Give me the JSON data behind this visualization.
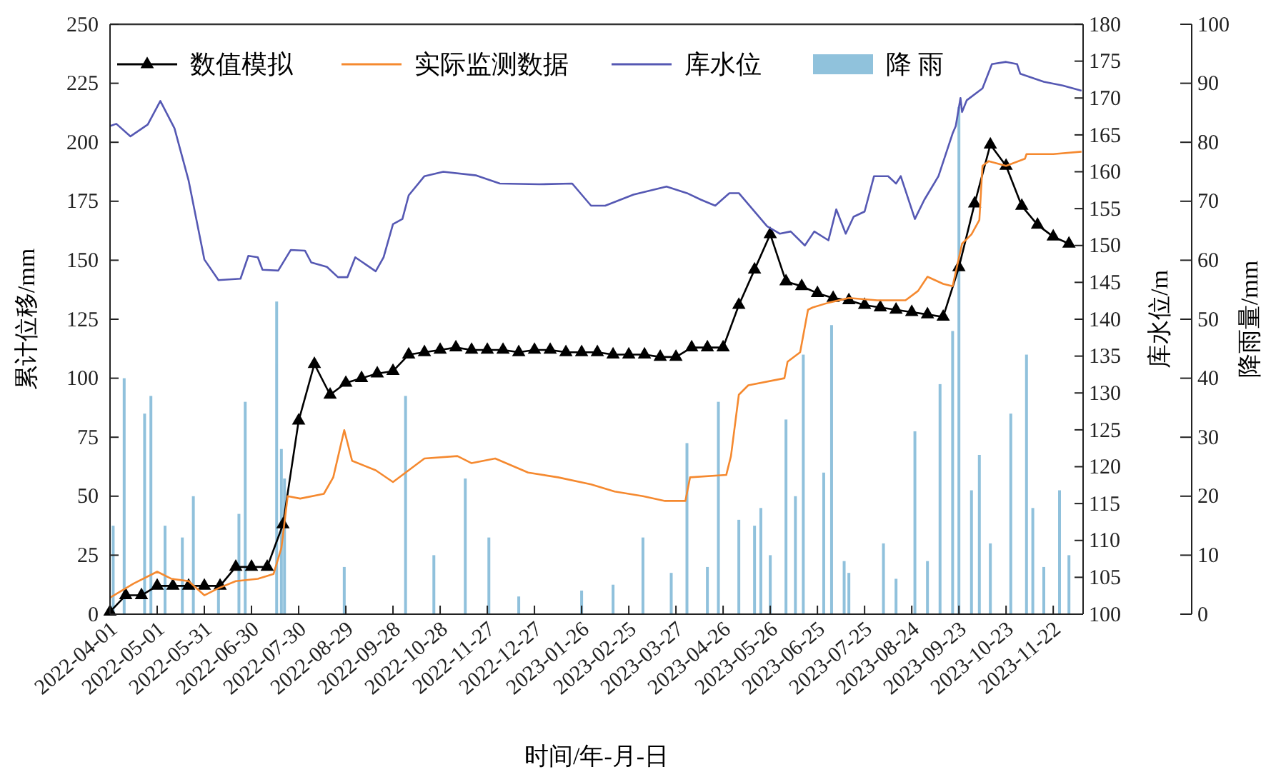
{
  "chart_data": {
    "type": "line",
    "xlabel": "时间/年-月-日",
    "ylabel": "累计位移/mm",
    "y2label": "库水位/m",
    "y3label": "降雨量/mm",
    "legend": "top left",
    "xlim": [
      "2022-04-01",
      "2023-12-11"
    ],
    "xticks": [
      "2022-04-01",
      "2022-05-01",
      "2022-05-31",
      "2022-06-30",
      "2022-07-30",
      "2022-08-29",
      "2022-09-28",
      "2022-10-28",
      "2022-11-27",
      "2022-12-27",
      "2023-01-26",
      "2023-02-25",
      "2023-03-27",
      "2023-04-26",
      "2023-05-26",
      "2023-06-25",
      "2023-07-25",
      "2023-08-24",
      "2023-09-23",
      "2023-10-23",
      "2023-11-22"
    ],
    "ylim": [
      0,
      250
    ],
    "yticks": [
      0,
      25,
      50,
      75,
      100,
      125,
      150,
      175,
      200,
      225,
      250
    ],
    "y2lim": [
      100,
      180
    ],
    "y2ticks": [
      100,
      105,
      110,
      115,
      120,
      125,
      130,
      135,
      140,
      145,
      150,
      155,
      160,
      165,
      170,
      175,
      180
    ],
    "y3lim": [
      0,
      100
    ],
    "y3ticks": [
      0,
      10,
      20,
      30,
      40,
      50,
      60,
      70,
      80,
      90,
      100
    ],
    "series": [
      {
        "name": "数值模拟",
        "color": "#000000",
        "marker": "triangle",
        "x": [
          "2022-04-01",
          "2022-04-11",
          "2022-04-21",
          "2022-05-01",
          "2022-05-11",
          "2022-05-21",
          "2022-05-31",
          "2022-06-10",
          "2022-06-20",
          "2022-06-30",
          "2022-07-10",
          "2022-07-20",
          "2022-07-30",
          "2022-08-09",
          "2022-08-19",
          "2022-08-29",
          "2022-09-08",
          "2022-09-18",
          "2022-09-28",
          "2022-10-08",
          "2022-10-18",
          "2022-10-28",
          "2022-11-07",
          "2022-11-17",
          "2022-11-27",
          "2022-12-07",
          "2022-12-17",
          "2022-12-27",
          "2023-01-06",
          "2023-01-16",
          "2023-01-26",
          "2023-02-05",
          "2023-02-15",
          "2023-02-25",
          "2023-03-07",
          "2023-03-17",
          "2023-03-27",
          "2023-04-06",
          "2023-04-16",
          "2023-04-26",
          "2023-05-06",
          "2023-05-16",
          "2023-05-26",
          "2023-06-05",
          "2023-06-15",
          "2023-06-25",
          "2023-07-05",
          "2023-07-15",
          "2023-07-25",
          "2023-08-04",
          "2023-08-14",
          "2023-08-24",
          "2023-09-03",
          "2023-09-13",
          "2023-09-23",
          "2023-10-03",
          "2023-10-13",
          "2023-10-23",
          "2023-11-02",
          "2023-11-12",
          "2023-11-22",
          "2023-12-02"
        ],
        "values": [
          1,
          8,
          8,
          12,
          12,
          12,
          12,
          12,
          20,
          20,
          20,
          38,
          82,
          106,
          93,
          98,
          100,
          102,
          103,
          110,
          111,
          112,
          113,
          112,
          112,
          112,
          111,
          112,
          112,
          111,
          111,
          111,
          110,
          110,
          110,
          109,
          109,
          113,
          113,
          113,
          131,
          146,
          161,
          141,
          139,
          136,
          134,
          133,
          131,
          130,
          129,
          128,
          127,
          126,
          147,
          174,
          199,
          190,
          173,
          165,
          160,
          157
        ]
      },
      {
        "name": "实际监测数据",
        "color": "#f5892f",
        "x": [
          "2022-04-01",
          "2022-04-16",
          "2022-05-01",
          "2022-05-10",
          "2022-05-21",
          "2022-05-31",
          "2022-06-09",
          "2022-06-20",
          "2022-07-04",
          "2022-07-14",
          "2022-07-19",
          "2022-07-23",
          "2022-07-31",
          "2022-08-15",
          "2022-08-21",
          "2022-08-28",
          "2022-09-02",
          "2022-09-17",
          "2022-09-28",
          "2022-10-06",
          "2022-10-18",
          "2022-11-08",
          "2022-11-17",
          "2022-12-02",
          "2022-12-23",
          "2023-01-11",
          "2023-02-01",
          "2023-02-16",
          "2023-03-06",
          "2023-03-20",
          "2023-04-02",
          "2023-04-05",
          "2023-04-28",
          "2023-05-01",
          "2023-05-06",
          "2023-05-12",
          "2023-06-04",
          "2023-06-06",
          "2023-06-14",
          "2023-06-19",
          "2023-06-22",
          "2023-07-02",
          "2023-07-15",
          "2023-08-02",
          "2023-08-20",
          "2023-08-28",
          "2023-09-03",
          "2023-09-13",
          "2023-09-19",
          "2023-09-25",
          "2023-10-01",
          "2023-10-06",
          "2023-10-08",
          "2023-10-12",
          "2023-10-23",
          "2023-11-04",
          "2023-11-05",
          "2023-11-22",
          "2023-12-10"
        ],
        "values": [
          7,
          13,
          18,
          15,
          14,
          8,
          11,
          14,
          15,
          17,
          28,
          50,
          49,
          51,
          58,
          78,
          65,
          61,
          56,
          60,
          66,
          67,
          64,
          66,
          60,
          58,
          55,
          52,
          50,
          48,
          48,
          58,
          59,
          67,
          93,
          97,
          100,
          107,
          111,
          129,
          130,
          132,
          134,
          133,
          133,
          137,
          143,
          140,
          139,
          157,
          161,
          167,
          190,
          192,
          190,
          193,
          195,
          195,
          196
        ]
      },
      {
        "name": "库水位",
        "axis": "y2",
        "color": "#5558b3",
        "x": [
          "2022-04-01",
          "2022-04-05",
          "2022-04-14",
          "2022-04-25",
          "2022-05-03",
          "2022-05-12",
          "2022-05-21",
          "2022-05-31",
          "2022-06-09",
          "2022-06-23",
          "2022-06-28",
          "2022-07-04",
          "2022-07-07",
          "2022-07-17",
          "2022-07-25",
          "2022-08-03",
          "2022-08-07",
          "2022-08-17",
          "2022-08-24",
          "2022-08-30",
          "2022-09-04",
          "2022-09-17",
          "2022-09-22",
          "2022-09-28",
          "2022-10-04",
          "2022-10-08",
          "2022-10-18",
          "2022-10-30",
          "2022-11-20",
          "2022-12-05",
          "2022-12-30",
          "2023-01-20",
          "2023-02-01",
          "2023-02-10",
          "2023-02-28",
          "2023-03-21",
          "2023-04-03",
          "2023-04-12",
          "2023-04-21",
          "2023-04-30",
          "2023-05-06",
          "2023-05-24",
          "2023-06-01",
          "2023-06-08",
          "2023-06-17",
          "2023-06-23",
          "2023-07-02",
          "2023-07-07",
          "2023-07-13",
          "2023-07-18",
          "2023-07-25",
          "2023-07-31",
          "2023-08-09",
          "2023-08-14",
          "2023-08-17",
          "2023-08-26",
          "2023-09-01",
          "2023-09-10",
          "2023-09-19",
          "2023-09-21",
          "2023-09-24",
          "2023-09-25",
          "2023-09-28",
          "2023-10-08",
          "2023-10-14",
          "2023-10-23",
          "2023-10-30",
          "2023-11-01",
          "2023-11-16",
          "2023-11-28",
          "2023-12-10"
        ],
        "values": [
          166.2,
          166.5,
          164.8,
          166.4,
          169.6,
          165.9,
          158.8,
          148.1,
          145.3,
          145.5,
          148.6,
          148.4,
          146.7,
          146.6,
          149.4,
          149.3,
          147.7,
          147.1,
          145.7,
          145.7,
          148.4,
          146.5,
          148.4,
          152.9,
          153.6,
          156.8,
          159.4,
          160.0,
          159.5,
          158.4,
          158.3,
          158.4,
          155.4,
          155.4,
          156.9,
          158.0,
          157.1,
          156.2,
          155.4,
          157.1,
          157.1,
          152.6,
          151.6,
          151.9,
          150.0,
          151.9,
          150.7,
          154.9,
          151.6,
          153.9,
          154.6,
          159.4,
          159.4,
          158.4,
          159.4,
          153.6,
          156.2,
          159.4,
          165.2,
          166.2,
          170.0,
          168.1,
          169.7,
          171.3,
          174.6,
          174.9,
          174.6,
          173.3,
          172.2,
          171.7,
          171.0
        ]
      },
      {
        "name": "降 雨",
        "type": "bar",
        "axis": "y3",
        "color": "#7db7d6",
        "x": [
          "2022-04-03",
          "2022-04-10",
          "2022-04-23",
          "2022-04-27",
          "2022-05-06",
          "2022-05-17",
          "2022-05-24",
          "2022-06-09",
          "2022-06-22",
          "2022-06-26",
          "2022-07-16",
          "2022-07-19",
          "2022-07-21",
          "2022-08-28",
          "2022-10-06",
          "2022-10-24",
          "2022-11-13",
          "2022-11-28",
          "2022-12-17",
          "2023-01-26",
          "2023-02-15",
          "2023-03-06",
          "2023-03-24",
          "2023-04-03",
          "2023-04-16",
          "2023-04-23",
          "2023-05-06",
          "2023-05-16",
          "2023-05-20",
          "2023-05-26",
          "2023-06-05",
          "2023-06-11",
          "2023-06-16",
          "2023-06-29",
          "2023-07-04",
          "2023-07-12",
          "2023-07-15",
          "2023-08-06",
          "2023-08-14",
          "2023-08-26",
          "2023-09-03",
          "2023-09-11",
          "2023-09-19",
          "2023-09-23",
          "2023-10-01",
          "2023-10-06",
          "2023-10-13",
          "2023-10-26",
          "2023-11-05",
          "2023-11-09",
          "2023-11-16",
          "2023-11-26",
          "2023-12-02"
        ],
        "values": [
          15,
          40,
          34,
          37,
          15,
          13,
          20,
          5,
          17,
          36,
          53,
          28,
          23,
          8,
          37,
          10,
          23,
          13,
          3,
          4,
          5,
          13,
          7,
          29,
          8,
          36,
          16,
          15,
          18,
          10,
          33,
          20,
          44,
          24,
          49,
          9,
          7,
          12,
          6,
          31,
          9,
          39,
          48,
          86,
          21,
          27,
          12,
          34,
          44,
          18,
          8,
          21,
          10
        ]
      }
    ]
  }
}
